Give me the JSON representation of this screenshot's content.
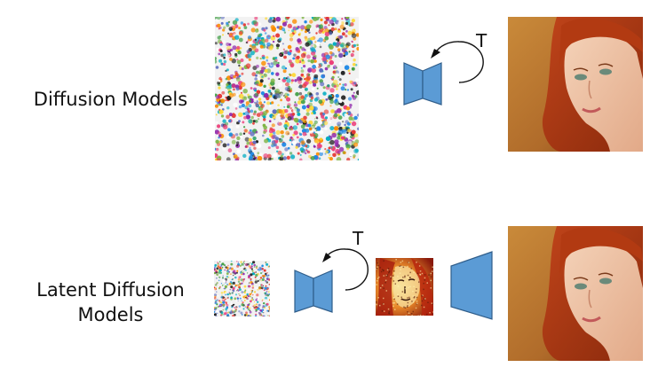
{
  "rows": {
    "diffusion": {
      "label": "Diffusion Models",
      "timestep": "T"
    },
    "latent": {
      "label_line1": "Latent Diffusion",
      "label_line2": "Models",
      "timestep": "T"
    }
  },
  "icons": {
    "noise_image": "noise-image-icon",
    "unet": "unet-hourglass-icon",
    "loop_arrow": "loop-arrow-icon",
    "decoder": "decoder-trapezoid-icon",
    "portrait": "portrait-photo-icon",
    "latent": "latent-portrait-icon"
  },
  "colors": {
    "block_fill": "#5b9bd5",
    "block_stroke": "#2f5d8a",
    "text": "#111111"
  }
}
